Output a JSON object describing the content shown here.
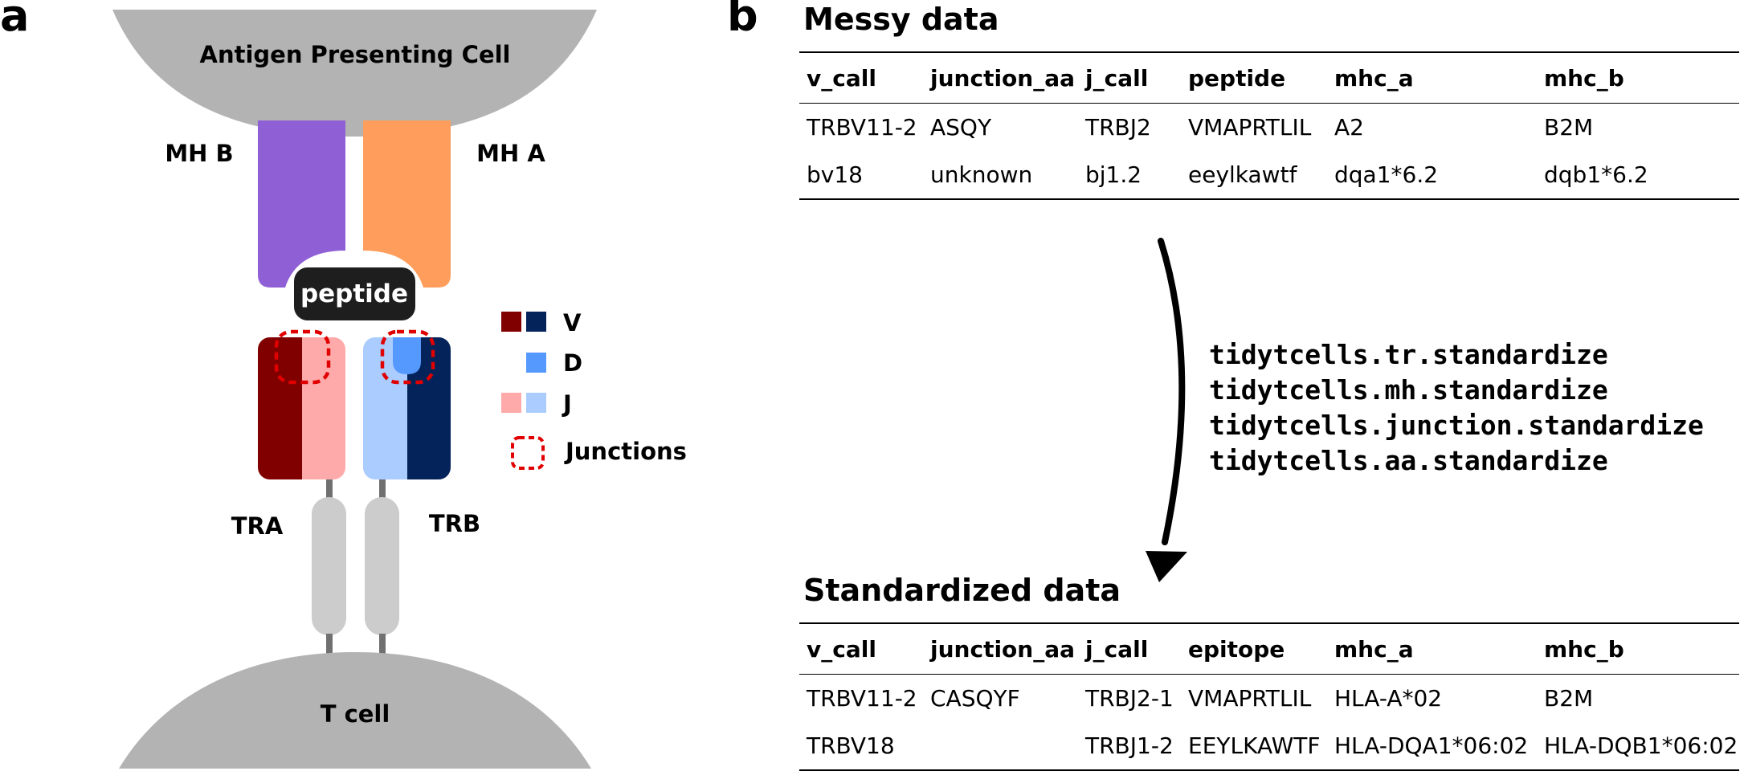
{
  "panel_labels": {
    "a": "a",
    "b": "b"
  },
  "diagram": {
    "apc_label": "Antigen Presenting Cell",
    "t_cell_label": "T cell",
    "mhb_label": "MH B",
    "mha_label": "MH A",
    "peptide_label": "peptide",
    "tra_label": "TRA",
    "trb_label": "TRB",
    "colors": {
      "cell_gray": "#b3b3b3",
      "mhb_purple": "#8f5fd6",
      "mha_orange": "#ff9e5c",
      "tra_v": "#800000",
      "tra_j": "#ffaaaa",
      "trb_v": "#04235a",
      "trb_j": "#aaccff",
      "d_segment": "#5599ff",
      "junction": "#e00000",
      "stalk": "#cccccc"
    },
    "legend": [
      {
        "label": "V",
        "icon": "v-segment-swatch"
      },
      {
        "label": "D",
        "icon": "d-segment-swatch"
      },
      {
        "label": "J",
        "icon": "j-segment-swatch"
      },
      {
        "label": "Junctions",
        "icon": "junction-dashed-box"
      }
    ]
  },
  "messy": {
    "title": "Messy data",
    "columns": [
      "v_call",
      "junction_aa",
      "j_call",
      "peptide",
      "mhc_a",
      "mhc_b"
    ],
    "rows": [
      [
        "TRBV11-2",
        "ASQY",
        "TRBJ2",
        "VMAPRTLIL",
        "A2",
        "B2M"
      ],
      [
        "bv18",
        "unknown",
        "bj1.2",
        "eeylkawtf",
        "dqa1*6.2",
        "dqb1*6.2"
      ]
    ]
  },
  "commands": [
    "tidytcells.tr.standardize",
    "tidytcells.mh.standardize",
    "tidytcells.junction.standardize",
    "tidytcells.aa.standardize"
  ],
  "standardized": {
    "title": "Standardized data",
    "columns": [
      "v_call",
      "junction_aa",
      "j_call",
      "epitope",
      "mhc_a",
      "mhc_b"
    ],
    "rows": [
      [
        "TRBV11-2",
        "CASQYF",
        "TRBJ2-1",
        "VMAPRTLIL",
        "HLA-A*02",
        "B2M"
      ],
      [
        "TRBV18",
        "",
        "TRBJ1-2",
        "EEYLKAWTF",
        "HLA-DQA1*06:02",
        "HLA-DQB1*06:02"
      ]
    ]
  }
}
